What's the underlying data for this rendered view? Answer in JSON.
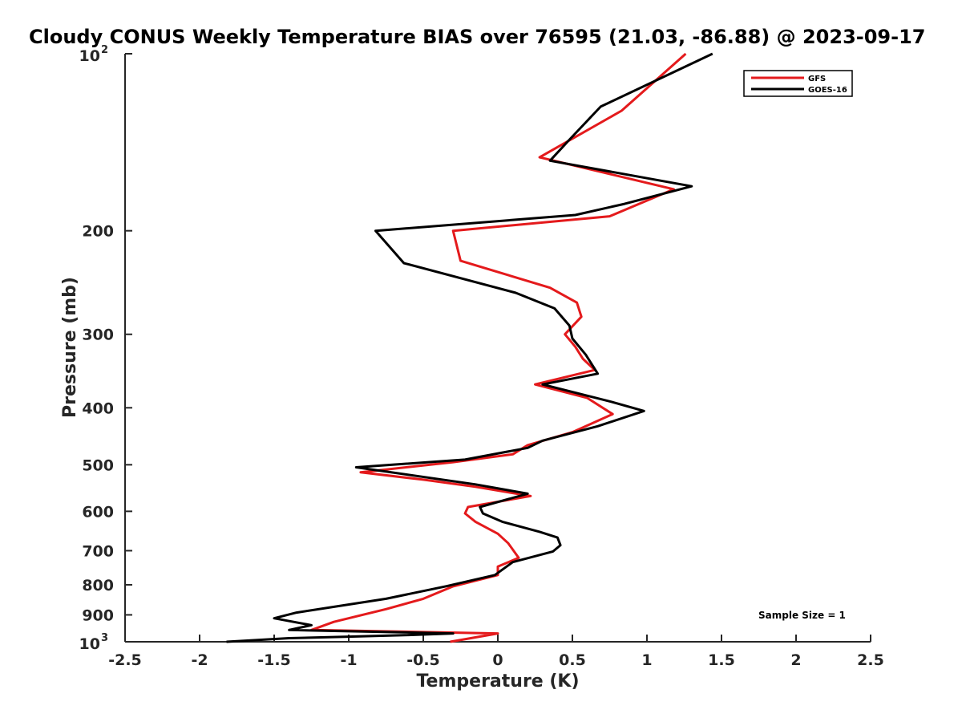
{
  "chart_data": {
    "type": "line",
    "title": "Cloudy CONUS Weekly Temperature BIAS over 76595 (21.03, -86.88) @ 2023-09-17",
    "xlabel": "Temperature (K)",
    "ylabel": "Pressure (mb)",
    "xlim": [
      -2.5,
      2.5
    ],
    "ylim": [
      100,
      1000
    ],
    "yscale": "log",
    "yreversed": true,
    "x_ticks": [
      "-2.5",
      "-2",
      "-1.5",
      "-1",
      "-0.5",
      "0",
      "0.5",
      "1",
      "1.5",
      "2",
      "2.5"
    ],
    "y_ticks": [
      {
        "value": 100,
        "base": "10",
        "exp": "2"
      },
      {
        "value": 200,
        "label": "200"
      },
      {
        "value": 300,
        "label": "300"
      },
      {
        "value": 400,
        "label": "400"
      },
      {
        "value": 500,
        "label": "500"
      },
      {
        "value": 600,
        "label": "600"
      },
      {
        "value": 700,
        "label": "700"
      },
      {
        "value": 800,
        "label": "800"
      },
      {
        "value": 900,
        "label": "900"
      },
      {
        "value": 1000,
        "base": "10",
        "exp": "3"
      }
    ],
    "legend_position": "top-right",
    "annotation": "Sample Size = 1",
    "series": [
      {
        "name": "GFS",
        "color": "#e41a1c",
        "points": [
          [
            1.26,
            100
          ],
          [
            0.83,
            125
          ],
          [
            0.28,
            150
          ],
          [
            1.18,
            170
          ],
          [
            0.75,
            189
          ],
          [
            -0.3,
            200
          ],
          [
            -0.25,
            225
          ],
          [
            0.35,
            250
          ],
          [
            0.53,
            265
          ],
          [
            0.56,
            280
          ],
          [
            0.45,
            300
          ],
          [
            0.52,
            315
          ],
          [
            0.57,
            330
          ],
          [
            0.65,
            345
          ],
          [
            0.25,
            365
          ],
          [
            0.6,
            385
          ],
          [
            0.77,
            410
          ],
          [
            0.5,
            440
          ],
          [
            0.2,
            463
          ],
          [
            0.1,
            480
          ],
          [
            -0.3,
            495
          ],
          [
            -0.92,
            515
          ],
          [
            -0.5,
            530
          ],
          [
            -0.15,
            545
          ],
          [
            0.22,
            565
          ],
          [
            -0.2,
            590
          ],
          [
            -0.22,
            605
          ],
          [
            -0.15,
            625
          ],
          [
            0.0,
            655
          ],
          [
            0.07,
            680
          ],
          [
            0.14,
            720
          ],
          [
            0.0,
            745
          ],
          [
            0.0,
            770
          ],
          [
            -0.3,
            805
          ],
          [
            -0.5,
            845
          ],
          [
            -0.75,
            880
          ],
          [
            -1.1,
            925
          ],
          [
            -1.25,
            955
          ],
          [
            0.0,
            968
          ],
          [
            -0.32,
            1000
          ]
        ]
      },
      {
        "name": "GOES-16",
        "color": "#000000",
        "points": [
          [
            1.44,
            100
          ],
          [
            0.69,
            123
          ],
          [
            0.48,
            140
          ],
          [
            0.35,
            152
          ],
          [
            1.3,
            168
          ],
          [
            0.85,
            180
          ],
          [
            0.52,
            188
          ],
          [
            -0.82,
            200
          ],
          [
            -0.63,
            227
          ],
          [
            0.12,
            255
          ],
          [
            0.38,
            271
          ],
          [
            0.48,
            290
          ],
          [
            0.5,
            305
          ],
          [
            0.59,
            325
          ],
          [
            0.67,
            350
          ],
          [
            0.3,
            365
          ],
          [
            0.75,
            390
          ],
          [
            0.98,
            405
          ],
          [
            0.67,
            430
          ],
          [
            0.3,
            455
          ],
          [
            0.2,
            468
          ],
          [
            -0.22,
            490
          ],
          [
            -0.95,
            505
          ],
          [
            -0.15,
            540
          ],
          [
            0.2,
            560
          ],
          [
            -0.12,
            590
          ],
          [
            -0.1,
            605
          ],
          [
            0.03,
            625
          ],
          [
            0.28,
            650
          ],
          [
            0.4,
            665
          ],
          [
            0.42,
            685
          ],
          [
            0.37,
            702
          ],
          [
            0.1,
            732
          ],
          [
            -0.02,
            770
          ],
          [
            -0.35,
            805
          ],
          [
            -0.75,
            845
          ],
          [
            -1.35,
            892
          ],
          [
            -1.5,
            912
          ],
          [
            -1.25,
            937
          ],
          [
            -1.4,
            955
          ],
          [
            -0.3,
            968
          ],
          [
            -0.6,
            974
          ],
          [
            -1.0,
            980
          ],
          [
            -1.4,
            986
          ],
          [
            -1.82,
            1000
          ]
        ]
      }
    ]
  }
}
